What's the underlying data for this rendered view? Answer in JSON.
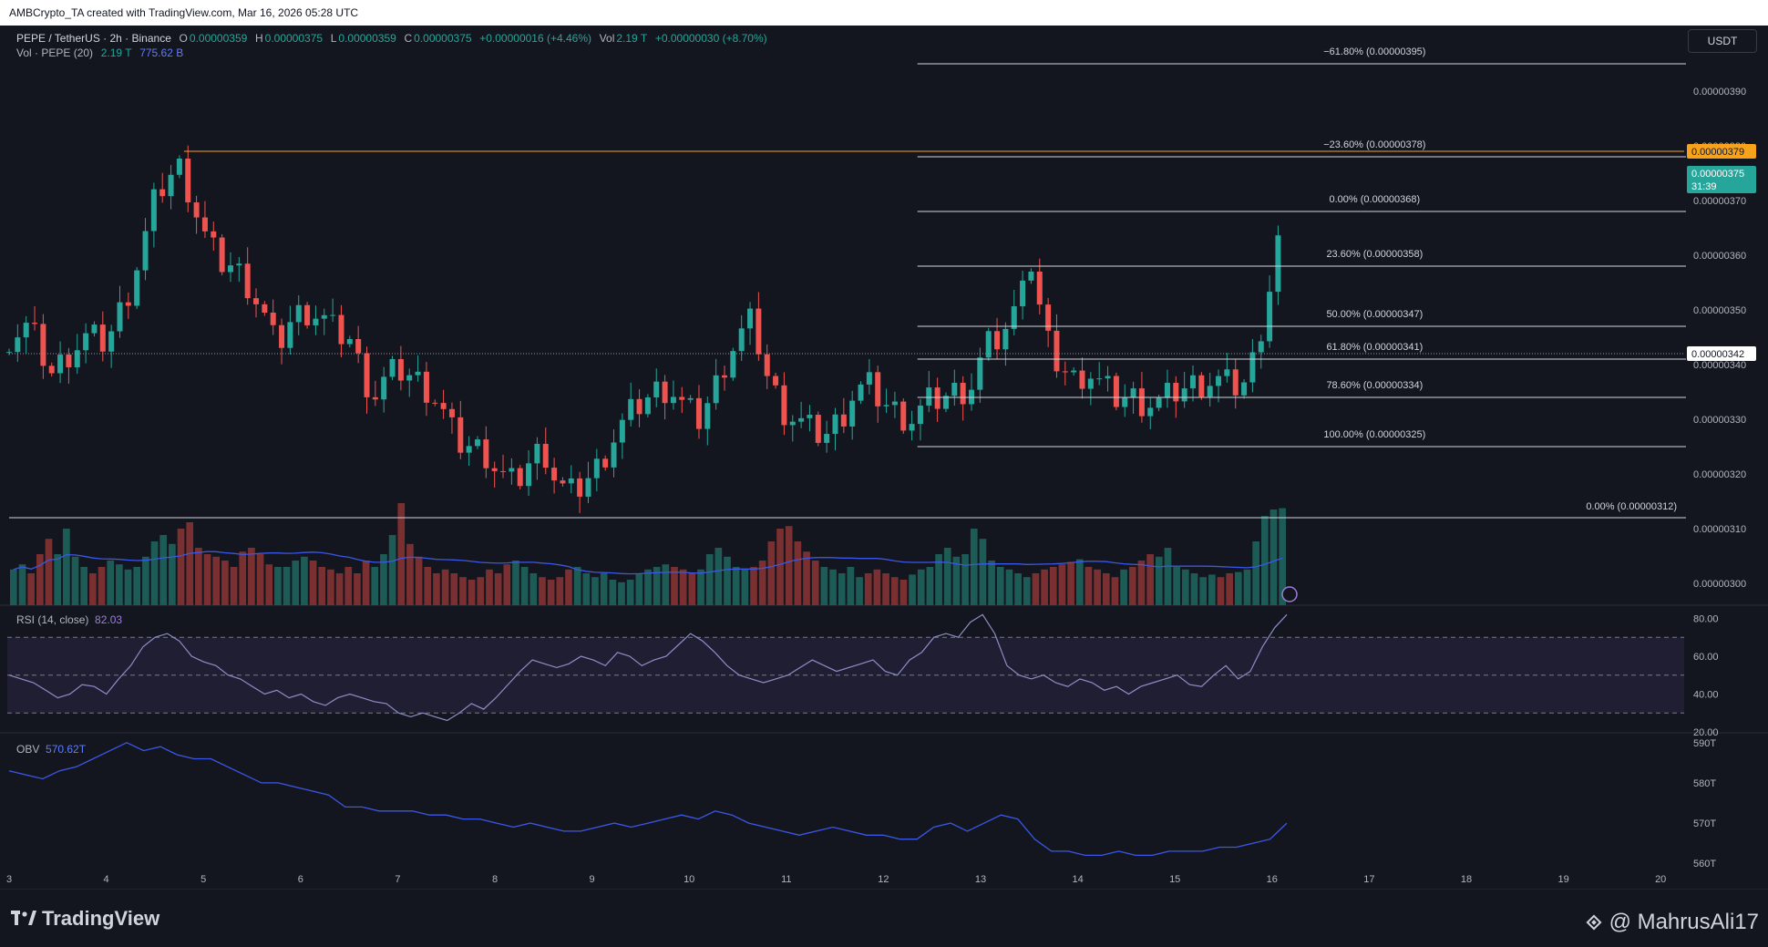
{
  "header": {
    "created_by": "AMBCrypto_TA created with TradingView.com, Mar 16, 2026 05:28 UTC"
  },
  "legend": {
    "symbol": "PEPE / TetherUS · 2h · Binance",
    "open_label": "O",
    "open": "0.00000359",
    "high_label": "H",
    "high": "0.00000375",
    "low_label": "L",
    "low": "0.00000359",
    "close_label": "C",
    "close": "0.00000375",
    "change": "+0.00000016 (+4.46%)",
    "vol_label": "Vol",
    "vol": "2.19 T",
    "vol_change": "+0.00000030 (+8.70%)",
    "vol_study": "Vol · PEPE (20)",
    "vol_value": "2.19 T",
    "vol_ma": "775.62 B"
  },
  "currency_button": "USDT",
  "rsi": {
    "label": "RSI (14, close)",
    "value": "82.03"
  },
  "obv": {
    "label": "OBV",
    "value": "570.62T"
  },
  "branding": {
    "tradingview": "TradingView",
    "watermark": "@ MahrusAli17"
  },
  "colors": {
    "up": "#26a69a",
    "down": "#ef5350",
    "up_vol": "#1d5c56",
    "down_vol": "#7a2f31",
    "grid": "#1f222d",
    "text": "#b2b5be",
    "orange": "#f7a21b",
    "blue": "#3b57e8",
    "rsi_line": "#8e8ec7"
  },
  "chart_data": [
    {
      "type": "candlestick",
      "pane": "price",
      "y_ticks": [
        "0.00000390",
        "0.00000380",
        "0.00000370",
        "0.00000360",
        "0.00000350",
        "0.00000340",
        "0.00000330",
        "0.00000320",
        "0.00000310",
        "0.00000300"
      ],
      "ylim": [
        2.96e-06,
        4e-06
      ],
      "x_ticks": [
        "3",
        "4",
        "5",
        "6",
        "7",
        "8",
        "9",
        "10",
        "11",
        "12",
        "13",
        "14",
        "15",
        "16",
        "17",
        "18",
        "19",
        "20"
      ],
      "price_tags": [
        {
          "text": "0.00000379",
          "value": 3.79e-06,
          "style": "orange"
        },
        {
          "text": "0.00000375",
          "value": 3.75e-06,
          "style": "green",
          "sub": "31:39"
        },
        {
          "text": "0.00000342",
          "value": 3.42e-06,
          "style": "white"
        }
      ],
      "horizontal_lines": [
        {
          "value": 3.79e-06,
          "style": "orange",
          "from_day": 4.8
        },
        {
          "value": 3.12e-06,
          "style": "white",
          "from_day": 3.0,
          "label": "0.00% (0.00000312)"
        },
        {
          "value": 3.42e-06,
          "style": "dotted",
          "from_day": 3.0
        }
      ],
      "fibonacci": [
        {
          "label": "−61.80% (0.00000395)",
          "value": 3.95e-06
        },
        {
          "label": "−23.60% (0.00000378)",
          "value": 3.78e-06
        },
        {
          "label": "0.00% (0.00000368)",
          "value": 3.68e-06
        },
        {
          "label": "23.60% (0.00000358)",
          "value": 3.58e-06
        },
        {
          "label": "50.00% (0.00000347)",
          "value": 3.47e-06
        },
        {
          "label": "61.80% (0.00000341)",
          "value": 3.41e-06
        },
        {
          "label": "78.60% (0.00000334)",
          "value": 3.34e-06
        },
        {
          "label": "100.00% (0.00000325)",
          "value": 3.25e-06
        }
      ],
      "fib_from_day": 12.35,
      "close_path": [
        [
          3.0,
          345
        ],
        [
          3.2,
          347
        ],
        [
          3.45,
          338
        ],
        [
          3.6,
          342
        ],
        [
          3.8,
          345
        ],
        [
          4.0,
          344
        ],
        [
          4.2,
          352
        ],
        [
          4.35,
          360
        ],
        [
          4.5,
          370
        ],
        [
          4.62,
          374
        ],
        [
          4.75,
          376
        ],
        [
          4.85,
          372
        ],
        [
          5.0,
          364
        ],
        [
          5.15,
          359
        ],
        [
          5.3,
          358
        ],
        [
          5.45,
          355
        ],
        [
          5.6,
          350
        ],
        [
          5.75,
          343
        ],
        [
          5.9,
          348
        ],
        [
          6.05,
          350
        ],
        [
          6.2,
          349
        ],
        [
          6.35,
          346
        ],
        [
          6.5,
          345
        ],
        [
          6.6,
          340
        ],
        [
          6.75,
          334
        ],
        [
          6.9,
          338
        ],
        [
          7.05,
          339
        ],
        [
          7.2,
          337
        ],
        [
          7.35,
          335
        ],
        [
          7.5,
          330
        ],
        [
          7.6,
          326
        ],
        [
          7.75,
          325
        ],
        [
          7.9,
          324
        ],
        [
          8.05,
          320
        ],
        [
          8.2,
          318
        ],
        [
          8.35,
          322
        ],
        [
          8.5,
          325
        ],
        [
          8.6,
          320
        ],
        [
          8.75,
          316
        ],
        [
          8.9,
          318
        ],
        [
          9.05,
          321
        ],
        [
          9.2,
          326
        ],
        [
          9.35,
          330
        ],
        [
          9.5,
          333
        ],
        [
          9.65,
          335
        ],
        [
          9.8,
          336
        ],
        [
          9.95,
          332
        ],
        [
          10.1,
          330
        ],
        [
          10.25,
          335
        ],
        [
          10.4,
          342
        ],
        [
          10.55,
          346
        ],
        [
          10.65,
          348
        ],
        [
          10.8,
          338
        ],
        [
          10.95,
          332
        ],
        [
          11.1,
          330
        ],
        [
          11.25,
          328
        ],
        [
          11.4,
          327
        ],
        [
          11.55,
          330
        ],
        [
          11.7,
          335
        ],
        [
          11.85,
          336
        ],
        [
          12.0,
          333
        ],
        [
          12.15,
          331
        ],
        [
          12.3,
          330
        ],
        [
          12.45,
          333
        ],
        [
          12.6,
          334
        ],
        [
          12.75,
          335
        ],
        [
          12.9,
          336
        ],
        [
          13.05,
          343
        ],
        [
          13.2,
          345
        ],
        [
          13.35,
          349
        ],
        [
          13.45,
          360
        ],
        [
          13.55,
          357
        ],
        [
          13.65,
          345
        ],
        [
          13.8,
          340
        ],
        [
          13.95,
          337
        ],
        [
          14.1,
          339
        ],
        [
          14.25,
          336
        ],
        [
          14.4,
          334
        ],
        [
          14.55,
          334
        ],
        [
          14.7,
          333
        ],
        [
          14.85,
          333
        ],
        [
          15.0,
          335
        ],
        [
          15.15,
          336
        ],
        [
          15.3,
          337
        ],
        [
          15.45,
          337
        ],
        [
          15.6,
          336
        ],
        [
          15.75,
          337
        ],
        [
          15.85,
          344
        ],
        [
          15.95,
          352
        ],
        [
          16.05,
          361
        ],
        [
          16.15,
          375
        ]
      ]
    },
    {
      "type": "bar",
      "pane": "volume",
      "note_values_relative": true,
      "values": [
        28,
        32,
        25,
        40,
        52,
        40,
        60,
        38,
        30,
        25,
        30,
        35,
        32,
        28,
        30,
        38,
        50,
        55,
        48,
        60,
        65,
        45,
        40,
        38,
        35,
        30,
        42,
        45,
        40,
        32,
        30,
        30,
        35,
        38,
        35,
        30,
        28,
        25,
        30,
        25,
        35,
        30,
        40,
        55,
        80,
        48,
        38,
        30,
        25,
        28,
        25,
        22,
        20,
        22,
        28,
        25,
        32,
        35,
        30,
        25,
        22,
        20,
        22,
        28,
        30,
        25,
        22,
        25,
        20,
        18,
        20,
        25,
        28,
        30,
        32,
        30,
        28,
        25,
        28,
        40,
        45,
        38,
        30,
        28,
        30,
        35,
        50,
        60,
        62,
        50,
        42,
        35,
        30,
        28,
        25,
        30,
        22,
        25,
        28,
        25,
        22,
        20,
        24,
        28,
        30,
        40,
        45,
        38,
        40,
        60,
        52,
        35,
        30,
        28,
        25,
        22,
        25,
        28,
        30,
        32,
        34,
        36,
        30,
        28,
        25,
        22,
        28,
        30,
        35,
        40,
        38,
        45,
        30,
        28,
        25,
        22,
        24,
        22,
        25,
        26,
        28,
        50,
        70,
        75,
        76
      ],
      "ma_note": "20-period moving average line"
    },
    {
      "type": "line",
      "pane": "rsi",
      "y_ticks": [
        "80.00",
        "60.00",
        "40.00",
        "20.00"
      ],
      "ylim": [
        20,
        86
      ],
      "bands": [
        70,
        50,
        30
      ],
      "values": [
        50,
        48,
        46,
        42,
        38,
        40,
        45,
        44,
        40,
        48,
        55,
        65,
        70,
        72,
        68,
        60,
        57,
        55,
        50,
        48,
        44,
        40,
        42,
        38,
        40,
        36,
        34,
        38,
        40,
        38,
        36,
        35,
        30,
        28,
        30,
        28,
        26,
        30,
        35,
        32,
        38,
        45,
        52,
        58,
        56,
        54,
        56,
        60,
        58,
        55,
        62,
        60,
        55,
        58,
        60,
        66,
        72,
        68,
        62,
        55,
        50,
        48,
        46,
        48,
        50,
        54,
        58,
        55,
        52,
        54,
        56,
        58,
        52,
        50,
        58,
        62,
        70,
        72,
        70,
        78,
        82,
        72,
        55,
        50,
        48,
        50,
        46,
        44,
        48,
        46,
        42,
        44,
        40,
        44,
        46,
        48,
        50,
        45,
        44,
        50,
        55,
        48,
        52,
        65,
        75,
        82
      ]
    },
    {
      "type": "line",
      "pane": "obv",
      "y_ticks": [
        "590T",
        "580T",
        "570T",
        "560T"
      ],
      "ylim": [
        558,
        592
      ],
      "values": [
        583,
        582,
        581,
        583,
        584,
        586,
        588,
        590,
        588,
        589,
        587,
        586,
        586,
        584,
        582,
        580,
        580,
        579,
        578,
        577,
        574,
        574,
        573,
        573,
        573,
        572,
        572,
        571,
        571,
        570,
        569,
        570,
        569,
        568,
        568,
        569,
        570,
        569,
        570,
        571,
        572,
        571,
        573,
        572,
        570,
        569,
        568,
        567,
        568,
        569,
        568,
        567,
        567,
        566,
        566,
        569,
        570,
        568,
        570,
        572,
        571,
        566,
        563,
        563,
        562,
        562,
        563,
        562,
        562,
        563,
        563,
        563,
        564,
        564,
        565,
        566,
        570
      ]
    }
  ]
}
